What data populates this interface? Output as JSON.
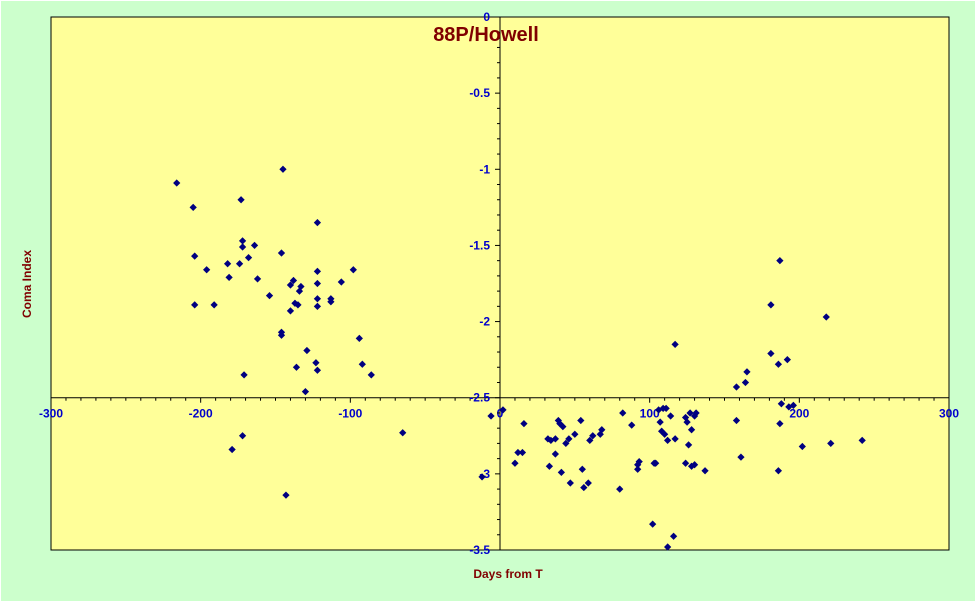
{
  "chart_data": {
    "type": "scatter",
    "title": "88P/Howell",
    "xlabel": "Days from T",
    "ylabel": "Coma Index",
    "xlim": [
      -300,
      300
    ],
    "ylim": [
      -3.5,
      0
    ],
    "x_ticks": [
      -300,
      -200,
      -100,
      0,
      100,
      200,
      300
    ],
    "y_ticks": [
      0,
      -0.5,
      -1,
      -1.5,
      -2,
      -2.5,
      -3,
      -3.5
    ],
    "x_tick_labels": [
      "-300",
      "-200",
      "-100",
      "0",
      "100",
      "200",
      "300"
    ],
    "y_tick_labels": [
      "0",
      "-0.5",
      "-1",
      "-1.5",
      "-2",
      "-2.5",
      "-3",
      "-3.5"
    ],
    "grid": false,
    "legend": "none",
    "colors": {
      "page_background": "#ccffcc",
      "plot_background": "#ffff99",
      "marker": "#000080",
      "title": "#800000",
      "axis_title": "#800000",
      "tick_label": "#0000cc",
      "axis_line": "#000000"
    },
    "points": [
      [
        -216,
        -1.09
      ],
      [
        -205,
        -1.25
      ],
      [
        -204,
        -1.57
      ],
      [
        -204,
        -1.89
      ],
      [
        -196,
        -1.66
      ],
      [
        -191,
        -1.89
      ],
      [
        -182,
        -1.62
      ],
      [
        -181,
        -1.71
      ],
      [
        -179,
        -2.84
      ],
      [
        -174,
        -1.62
      ],
      [
        -173,
        -1.2
      ],
      [
        -172,
        -1.47
      ],
      [
        -172,
        -1.51
      ],
      [
        -172,
        -2.75
      ],
      [
        -171,
        -2.35
      ],
      [
        -168,
        -1.58
      ],
      [
        -164,
        -1.5
      ],
      [
        -162,
        -1.72
      ],
      [
        -154,
        -1.83
      ],
      [
        -146,
        -1.55
      ],
      [
        -146,
        -2.07
      ],
      [
        -146,
        -2.09
      ],
      [
        -145,
        -1.0
      ],
      [
        -143,
        -3.14
      ],
      [
        -140,
        -1.93
      ],
      [
        -140,
        -1.76
      ],
      [
        -138,
        -1.73
      ],
      [
        -137,
        -1.88
      ],
      [
        -136,
        -2.3
      ],
      [
        -135,
        -1.89
      ],
      [
        -134,
        -1.8
      ],
      [
        -133,
        -1.77
      ],
      [
        -130,
        -2.46
      ],
      [
        -129,
        -2.19
      ],
      [
        -123,
        -2.27
      ],
      [
        -122,
        -1.67
      ],
      [
        -122,
        -1.85
      ],
      [
        -122,
        -1.9
      ],
      [
        -122,
        -2.32
      ],
      [
        -122,
        -1.35
      ],
      [
        -122,
        -1.75
      ],
      [
        -113,
        -1.85
      ],
      [
        -113,
        -1.87
      ],
      [
        -106,
        -1.74
      ],
      [
        -98,
        -1.66
      ],
      [
        -94,
        -2.11
      ],
      [
        -92,
        -2.28
      ],
      [
        -86,
        -2.35
      ],
      [
        -65,
        -2.73
      ],
      [
        -12,
        -3.02
      ],
      [
        -6,
        -2.62
      ],
      [
        2,
        -2.58
      ],
      [
        10,
        -2.93
      ],
      [
        12,
        -2.86
      ],
      [
        15,
        -2.86
      ],
      [
        16,
        -2.67
      ],
      [
        32,
        -2.77
      ],
      [
        33,
        -2.95
      ],
      [
        34,
        -2.78
      ],
      [
        37,
        -2.77
      ],
      [
        37,
        -2.87
      ],
      [
        39,
        -2.65
      ],
      [
        40,
        -2.67
      ],
      [
        41,
        -2.99
      ],
      [
        42,
        -2.69
      ],
      [
        44,
        -2.8
      ],
      [
        46,
        -2.77
      ],
      [
        47,
        -3.06
      ],
      [
        50,
        -2.74
      ],
      [
        54,
        -2.65
      ],
      [
        55,
        -2.97
      ],
      [
        56,
        -3.09
      ],
      [
        59,
        -3.06
      ],
      [
        60,
        -2.78
      ],
      [
        62,
        -2.75
      ],
      [
        67,
        -2.74
      ],
      [
        68,
        -2.71
      ],
      [
        80,
        -3.1
      ],
      [
        82,
        -2.6
      ],
      [
        88,
        -2.68
      ],
      [
        92,
        -2.94
      ],
      [
        92,
        -2.97
      ],
      [
        93,
        -2.92
      ],
      [
        102,
        -3.33
      ],
      [
        103,
        -2.93
      ],
      [
        104,
        -2.93
      ],
      [
        106,
        -2.58
      ],
      [
        107,
        -2.66
      ],
      [
        108,
        -2.72
      ],
      [
        109,
        -2.57
      ],
      [
        110,
        -2.74
      ],
      [
        111,
        -2.57
      ],
      [
        112,
        -3.48
      ],
      [
        112,
        -2.78
      ],
      [
        114,
        -2.62
      ],
      [
        116,
        -3.41
      ],
      [
        117,
        -2.15
      ],
      [
        117,
        -2.77
      ],
      [
        124,
        -2.63
      ],
      [
        124,
        -2.93
      ],
      [
        125,
        -2.66
      ],
      [
        126,
        -2.81
      ],
      [
        127,
        -2.6
      ],
      [
        128,
        -2.71
      ],
      [
        128,
        -2.95
      ],
      [
        130,
        -2.62
      ],
      [
        130,
        -2.94
      ],
      [
        131,
        -2.6
      ],
      [
        137,
        -2.98
      ],
      [
        158,
        -2.43
      ],
      [
        158,
        -2.65
      ],
      [
        161,
        -2.89
      ],
      [
        164,
        -2.4
      ],
      [
        165,
        -2.33
      ],
      [
        181,
        -1.89
      ],
      [
        181,
        -2.21
      ],
      [
        186,
        -2.98
      ],
      [
        186,
        -2.28
      ],
      [
        187,
        -1.6
      ],
      [
        187,
        -2.67
      ],
      [
        188,
        -2.54
      ],
      [
        192,
        -2.25
      ],
      [
        193,
        -2.56
      ],
      [
        196,
        -2.55
      ],
      [
        202,
        -2.82
      ],
      [
        218,
        -1.97
      ],
      [
        221,
        -2.8
      ],
      [
        242,
        -2.78
      ]
    ]
  }
}
